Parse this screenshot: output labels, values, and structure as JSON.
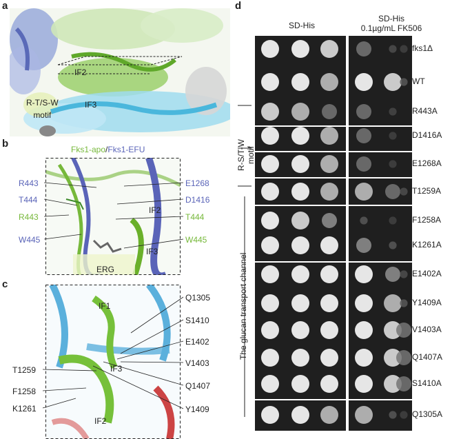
{
  "panels": {
    "a": {
      "letter": "a",
      "labels": {
        "if2": "IF2",
        "if3": "IF3",
        "motif": "R-T/S-W\nmotif"
      }
    },
    "b": {
      "letter": "b",
      "title_apo": "Fks1-apo",
      "title_sep": "/",
      "title_efu": "Fks1-EFU",
      "left_labels": [
        "R443",
        "T444",
        "R443",
        "W445"
      ],
      "right_labels": [
        "E1268",
        "D1416",
        "T444",
        "W445"
      ],
      "inner": {
        "if2": "IF2",
        "if3": "IF3",
        "erg": "ERG"
      }
    },
    "c": {
      "letter": "c",
      "right_labels": [
        "Q1305",
        "S1410",
        "E1402",
        "V1403",
        "Q1407",
        "Y1409"
      ],
      "left_labels": [
        "T1259",
        "F1258",
        "K1261"
      ],
      "inner": {
        "if1": "IF1",
        "if2": "IF2",
        "if3": "IF3"
      }
    },
    "d": {
      "letter": "d",
      "col1": "SD-His",
      "col2": "SD-His\n0.1µg/mL FK506",
      "strains": [
        "fks1Δ",
        "WT",
        "R443A",
        "D1416A",
        "E1268A",
        "T1259A",
        "F1258A",
        "K1261A",
        "E1402A",
        "Y1409A",
        "V1403A",
        "Q1407A",
        "S1410A",
        "Q1305A"
      ],
      "group_motif": "R-S/T-W\nmotif",
      "group_channel": "The glucan transport channel",
      "growth_nofk": [
        [
          3,
          3,
          2.5
        ],
        [
          3,
          3,
          2
        ],
        [
          2.5,
          2,
          1
        ],
        [
          3,
          3,
          2
        ],
        [
          3,
          3,
          2
        ],
        [
          3,
          3,
          2
        ],
        [
          3,
          2.5,
          1.5
        ],
        [
          3,
          3,
          3
        ],
        [
          3,
          3,
          3
        ],
        [
          3,
          3,
          3
        ],
        [
          3,
          3,
          3
        ],
        [
          3,
          3,
          3
        ],
        [
          3,
          3,
          3
        ],
        [
          3,
          3,
          2
        ]
      ],
      "growth_fk": [
        [
          1,
          0.3,
          0.1
        ],
        [
          3,
          2.5,
          0.5
        ],
        [
          1,
          0.2,
          0
        ],
        [
          1,
          0.1,
          0
        ],
        [
          1,
          0.1,
          0
        ],
        [
          2,
          1,
          0.3
        ],
        [
          0.5,
          0.1,
          0
        ],
        [
          1.5,
          0.5,
          0
        ],
        [
          3,
          1.5,
          0.3
        ],
        [
          3,
          2,
          0.5
        ],
        [
          3,
          2.5,
          1
        ],
        [
          3,
          2.5,
          1
        ],
        [
          3,
          2.5,
          1
        ],
        [
          2,
          0.5,
          0.1
        ]
      ]
    }
  }
}
